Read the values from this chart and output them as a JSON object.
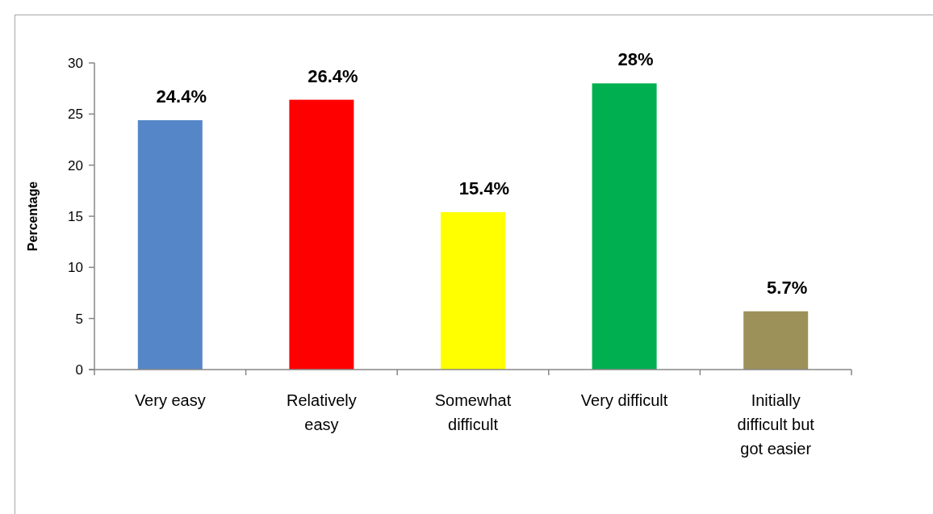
{
  "chart_data": {
    "type": "bar",
    "categories": [
      "Very easy",
      "Relatively easy",
      "Somewhat difficult",
      "Very difficult",
      "Initially difficult but got easier"
    ],
    "values": [
      24.4,
      26.4,
      15.4,
      28,
      5.7
    ],
    "colors": [
      "#5587c8",
      "#ff0000",
      "#ffff00",
      "#00b050",
      "#9c9158"
    ],
    "value_labels": [
      "24.4%",
      "26.4%",
      "15.4%",
      "28%",
      "5.7%"
    ],
    "ylabel": "Percentage",
    "ylim": [
      0,
      30
    ],
    "yticks": [
      0,
      5,
      10,
      15,
      20,
      25,
      30
    ],
    "grid": false
  }
}
